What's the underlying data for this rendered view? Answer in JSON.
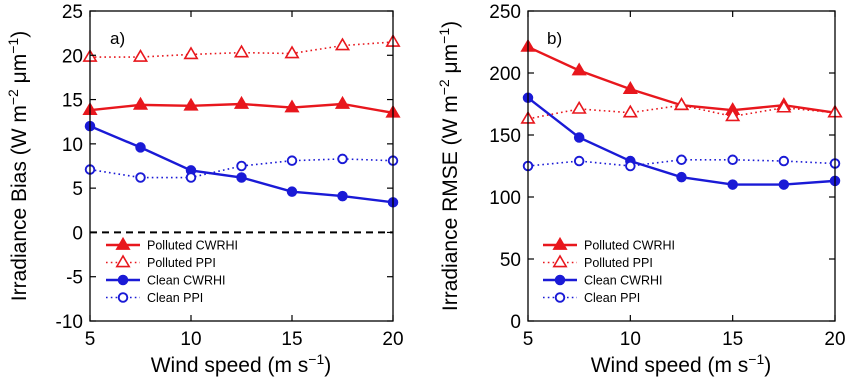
{
  "chart_data": [
    {
      "type": "line",
      "panel_label": "a)",
      "xlabel": {
        "main": "Wind speed (m s",
        "sup": "−1",
        "end": ")"
      },
      "ylabel": {
        "p1": "Irradiance Bias (W m",
        "s1": "−2",
        "p2": " μm",
        "s2": "−1",
        "p3": ")"
      },
      "xlim": [
        5,
        20
      ],
      "ylim": [
        -10,
        25
      ],
      "xticks": [
        5,
        10,
        15,
        20
      ],
      "yticks": [
        -10,
        -5,
        0,
        5,
        10,
        15,
        20,
        25
      ],
      "zero_line": true,
      "legend_position": "bottom-left",
      "x": [
        5,
        7.5,
        10,
        12.5,
        15,
        17.5,
        20
      ],
      "series": [
        {
          "name": "Polluted CWRHI",
          "color": "#e8171d",
          "style": "solid",
          "marker": "filled-triangle",
          "values": [
            13.8,
            14.4,
            14.3,
            14.5,
            14.1,
            14.5,
            13.5
          ]
        },
        {
          "name": "Polluted PPI",
          "color": "#e8171d",
          "style": "dotted",
          "marker": "open-triangle",
          "values": [
            19.8,
            19.8,
            20.1,
            20.3,
            20.2,
            21.1,
            21.5
          ]
        },
        {
          "name": "Clean CWRHI",
          "color": "#1a1ad6",
          "style": "solid",
          "marker": "filled-circle",
          "values": [
            12.0,
            9.6,
            7.0,
            6.2,
            4.6,
            4.1,
            3.4
          ]
        },
        {
          "name": "Clean PPI",
          "color": "#1a1ad6",
          "style": "dotted",
          "marker": "open-circle",
          "values": [
            7.1,
            6.2,
            6.2,
            7.5,
            8.1,
            8.3,
            8.1
          ]
        }
      ]
    },
    {
      "type": "line",
      "panel_label": "b)",
      "xlabel": {
        "main": "Wind speed (m s",
        "sup": "−1",
        "end": ")"
      },
      "ylabel": {
        "p1": "Irradiance RMSE (W m",
        "s1": "−2",
        "p2": " μm",
        "s2": "−1",
        "p3": ")"
      },
      "xlim": [
        5,
        20
      ],
      "ylim": [
        0,
        250
      ],
      "xticks": [
        5,
        10,
        15,
        20
      ],
      "yticks": [
        0,
        50,
        100,
        150,
        200,
        250
      ],
      "zero_line": false,
      "legend_position": "bottom-left",
      "x": [
        5,
        7.5,
        10,
        12.5,
        15,
        17.5,
        20
      ],
      "series": [
        {
          "name": "Polluted CWRHI",
          "color": "#e8171d",
          "style": "solid",
          "marker": "filled-triangle",
          "values": [
            221,
            202,
            187,
            174,
            170,
            174,
            168
          ]
        },
        {
          "name": "Polluted PPI",
          "color": "#e8171d",
          "style": "dotted",
          "marker": "open-triangle",
          "values": [
            163,
            171,
            168,
            174,
            165,
            172,
            168
          ]
        },
        {
          "name": "Clean CWRHI",
          "color": "#1a1ad6",
          "style": "solid",
          "marker": "filled-circle",
          "values": [
            180,
            148,
            129,
            116,
            110,
            110,
            113
          ]
        },
        {
          "name": "Clean PPI",
          "color": "#1a1ad6",
          "style": "dotted",
          "marker": "open-circle",
          "values": [
            125,
            129,
            125,
            130,
            130,
            129,
            127
          ]
        }
      ]
    }
  ]
}
